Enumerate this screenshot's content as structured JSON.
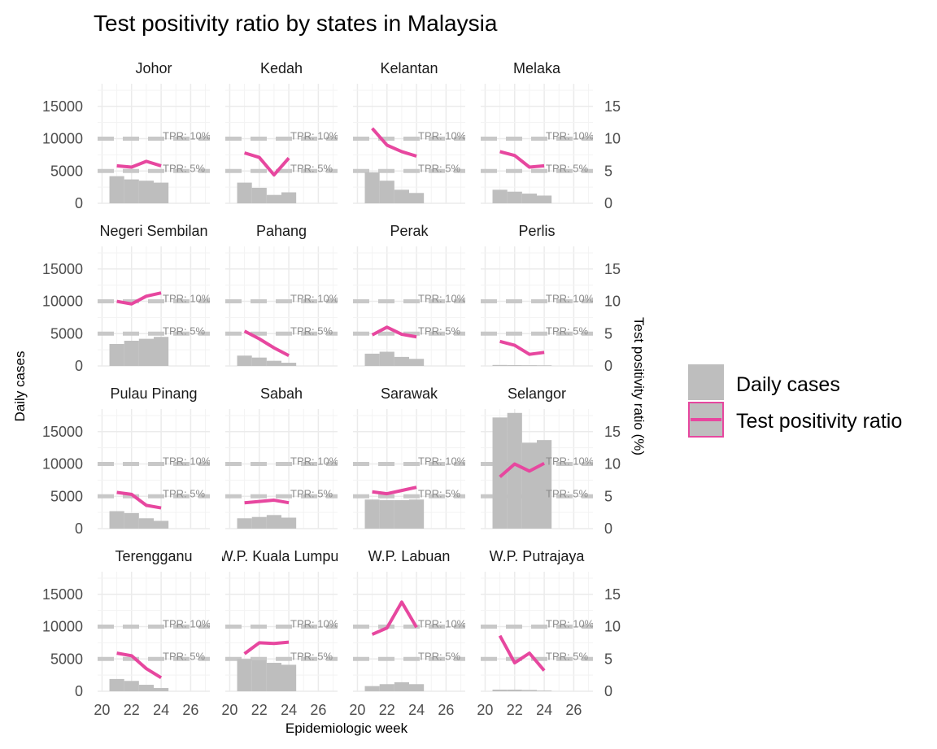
{
  "chart_data": {
    "type": "bar+line facets",
    "title": "Test positivity ratio by states in Malaysia",
    "xlabel": "Epidemiologic week",
    "ylabel": "Daily cases",
    "y2label": "Test positivity ratio (%)",
    "xlim": [
      19.7,
      27.3
    ],
    "ylim": [
      0,
      18500
    ],
    "y2lim": [
      0,
      18.5
    ],
    "x_ticks": [
      "20",
      "22",
      "24",
      "26"
    ],
    "y_ticks": [
      "0",
      "5000",
      "10000",
      "15000"
    ],
    "y2_ticks": [
      "0",
      "5",
      "10",
      "15"
    ],
    "reference_lines": [
      {
        "label": "TPR: 10%",
        "value": 10
      },
      {
        "label": "TPR: 5%",
        "value": 5
      }
    ],
    "series_colors": {
      "daily_cases": "#bebebe",
      "tpr": "#e7479f",
      "reference": "#c8c8c8"
    },
    "legend": {
      "position": "right",
      "items": [
        {
          "label": "Daily cases",
          "kind": "bar"
        },
        {
          "label": "Test positivity ratio",
          "kind": "line"
        }
      ]
    },
    "weeks": [
      21,
      22,
      23,
      24
    ],
    "facets": [
      {
        "state": "Johor",
        "daily_cases": [
          4200,
          3700,
          3500,
          3200
        ],
        "tpr": [
          5.8,
          5.6,
          6.5,
          5.8
        ]
      },
      {
        "state": "Kedah",
        "daily_cases": [
          3200,
          2400,
          1300,
          1700
        ],
        "tpr": [
          7.8,
          7.1,
          4.4,
          7.0
        ]
      },
      {
        "state": "Kelantan",
        "daily_cases": [
          4800,
          3500,
          2100,
          1600
        ],
        "tpr": [
          11.6,
          9.0,
          8.0,
          7.3
        ]
      },
      {
        "state": "Melaka",
        "daily_cases": [
          2100,
          1800,
          1500,
          1200
        ],
        "tpr": [
          8.0,
          7.4,
          5.6,
          5.8
        ]
      },
      {
        "state": "Negeri Sembilan",
        "daily_cases": [
          3400,
          3900,
          4200,
          4500
        ],
        "tpr": [
          10.0,
          9.6,
          10.8,
          11.3
        ]
      },
      {
        "state": "Pahang",
        "daily_cases": [
          1600,
          1300,
          800,
          500
        ],
        "tpr": [
          5.4,
          4.2,
          2.8,
          1.6
        ]
      },
      {
        "state": "Perak",
        "daily_cases": [
          1900,
          2200,
          1400,
          1100
        ],
        "tpr": [
          4.8,
          6.0,
          4.9,
          4.5
        ]
      },
      {
        "state": "Perlis",
        "daily_cases": [
          150,
          130,
          110,
          90
        ],
        "tpr": [
          3.8,
          3.2,
          1.8,
          2.1
        ]
      },
      {
        "state": "Pulau Pinang",
        "daily_cases": [
          2700,
          2400,
          1600,
          1200
        ],
        "tpr": [
          5.6,
          5.3,
          3.6,
          3.2
        ]
      },
      {
        "state": "Sabah",
        "daily_cases": [
          1600,
          1800,
          2100,
          1700
        ],
        "tpr": [
          4.0,
          4.2,
          4.4,
          4.0
        ]
      },
      {
        "state": "Sarawak",
        "daily_cases": [
          4500,
          4400,
          4400,
          4500
        ],
        "tpr": [
          5.7,
          5.4,
          5.9,
          6.4
        ]
      },
      {
        "state": "Selangor",
        "daily_cases": [
          17200,
          17900,
          13300,
          13700
        ],
        "tpr": [
          8.0,
          10.0,
          8.9,
          10.1
        ]
      },
      {
        "state": "Terengganu",
        "daily_cases": [
          1900,
          1600,
          1000,
          500
        ],
        "tpr": [
          5.9,
          5.5,
          3.5,
          2.1
        ]
      },
      {
        "state": "W.P. Kuala Lumpur",
        "daily_cases": [
          5000,
          4800,
          4400,
          4100
        ],
        "tpr": [
          5.8,
          7.5,
          7.4,
          7.6
        ]
      },
      {
        "state": "W.P. Labuan",
        "daily_cases": [
          800,
          1100,
          1400,
          1100
        ],
        "tpr": [
          8.8,
          9.8,
          13.8,
          9.9
        ]
      },
      {
        "state": "W.P. Putrajaya",
        "daily_cases": [
          250,
          250,
          200,
          100
        ],
        "tpr": [
          8.6,
          4.4,
          5.9,
          3.2
        ]
      }
    ]
  }
}
